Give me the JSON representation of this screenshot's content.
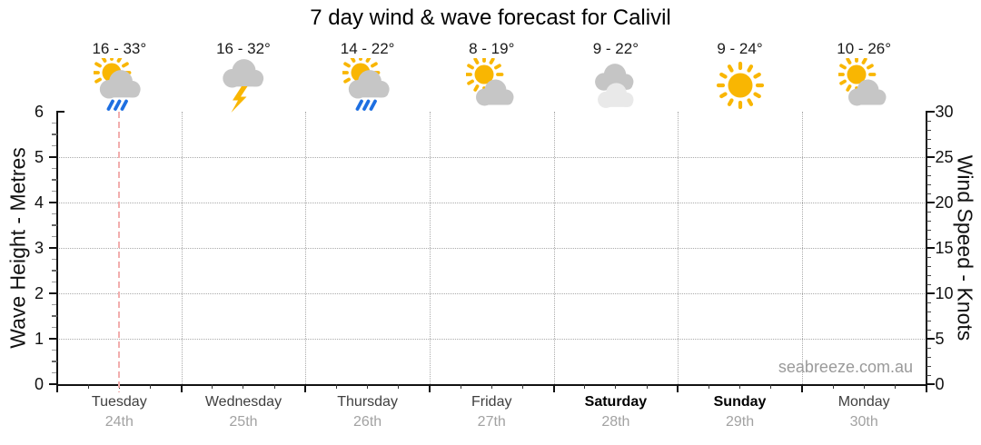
{
  "title": "7 day wind & wave forecast for Calivil",
  "watermark": "seabreeze.com.au",
  "chart_data": {
    "type": "table",
    "title": "7 day wind & wave forecast for Calivil",
    "location": "Calivil",
    "days": [
      {
        "day": "Tuesday",
        "date": "24th",
        "temp_label": "16 - 33°",
        "temp_min": 16,
        "temp_max": 33,
        "icon": "sun-cloud-rain",
        "condition": "Partly sunny with showers",
        "weekend": false
      },
      {
        "day": "Wednesday",
        "date": "25th",
        "temp_label": "16 - 32°",
        "temp_min": 16,
        "temp_max": 32,
        "icon": "cloud-lightning",
        "condition": "Thunderstorm",
        "weekend": false
      },
      {
        "day": "Thursday",
        "date": "26th",
        "temp_label": "14 - 22°",
        "temp_min": 14,
        "temp_max": 22,
        "icon": "sun-cloud-rain",
        "condition": "Partly sunny with showers",
        "weekend": false
      },
      {
        "day": "Friday",
        "date": "27th",
        "temp_label": "8 - 19°",
        "temp_min": 8,
        "temp_max": 19,
        "icon": "sun-cloud",
        "condition": "Partly cloudy",
        "weekend": false
      },
      {
        "day": "Saturday",
        "date": "28th",
        "temp_label": "9 - 22°",
        "temp_min": 9,
        "temp_max": 22,
        "icon": "clouds",
        "condition": "Cloudy",
        "weekend": true
      },
      {
        "day": "Sunday",
        "date": "29th",
        "temp_label": "9 - 24°",
        "temp_min": 9,
        "temp_max": 24,
        "icon": "sun",
        "condition": "Sunny",
        "weekend": true
      },
      {
        "day": "Monday",
        "date": "30th",
        "temp_label": "10 - 26°",
        "temp_min": 10,
        "temp_max": 26,
        "icon": "sun-cloud",
        "condition": "Partly cloudy",
        "weekend": false
      }
    ],
    "series": [],
    "left_axis": {
      "label": "Wave Height - Metres",
      "min": 0,
      "max": 6,
      "major_step": 1,
      "tick_labels": [
        "0",
        "1",
        "2",
        "3",
        "4",
        "5",
        "6"
      ]
    },
    "right_axis": {
      "label": "Wind Speed - Knots",
      "min": 0,
      "max": 30,
      "major_step": 5,
      "tick_labels": [
        "0",
        "5",
        "10",
        "15",
        "20",
        "25",
        "30"
      ]
    },
    "x_axis": {
      "day_labels": [
        "Tuesday",
        "Wednesday",
        "Thursday",
        "Friday",
        "Saturday",
        "Sunday",
        "Monday"
      ],
      "date_labels": [
        "24th",
        "25th",
        "26th",
        "27th",
        "28th",
        "29th",
        "30th"
      ]
    },
    "grid": true,
    "now_marker": {
      "day_index": 0,
      "fraction": 0.5
    },
    "colors": {
      "sun": "#F9B602",
      "cloud": "#C6C6C6",
      "cloud_dark": "#C5C5C5",
      "cloud_light": "#E9E9E9",
      "rain": "#1E6FE1",
      "bolt": "#F9B602",
      "now_line": "#F2AEAE",
      "grid": "#ABABAB",
      "axis": "#111111",
      "weekend_text": "#000000",
      "day_text": "#3F3F3F",
      "date_text": "#A2A2A2",
      "watermark_text": "#9A9A9A"
    }
  }
}
